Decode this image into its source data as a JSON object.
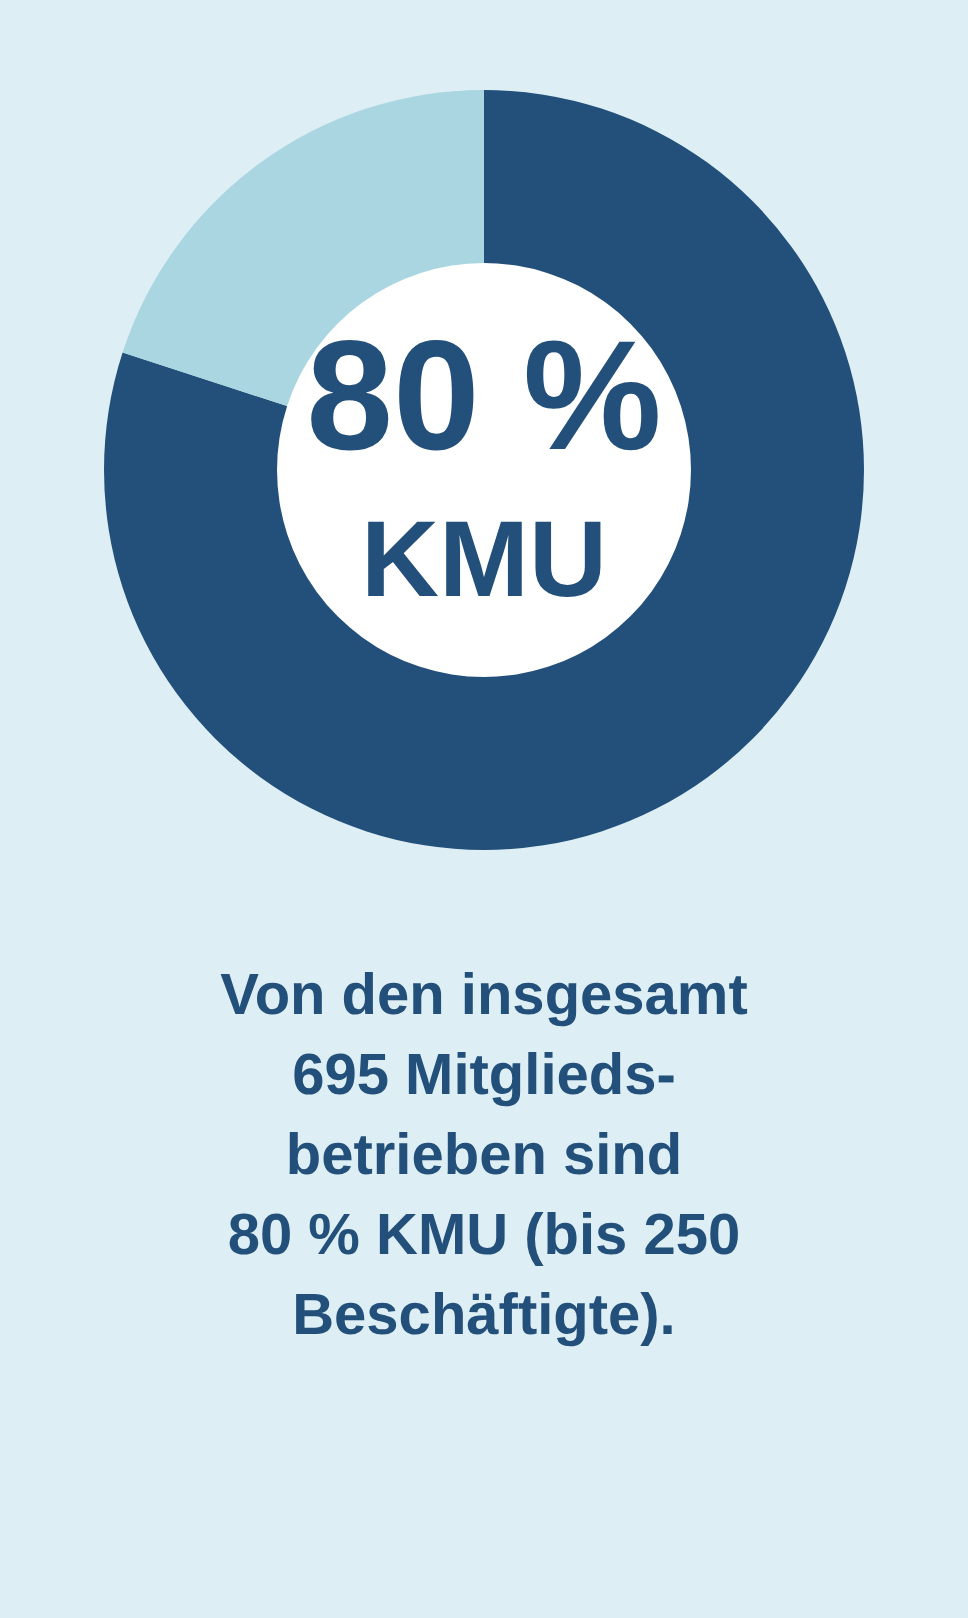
{
  "chart_data": {
    "type": "donut",
    "categories": [
      "KMU",
      null
    ],
    "values": [
      80,
      20
    ],
    "colors": [
      "#23507a",
      "#a9d6e0"
    ],
    "value_labels": [
      "80 %",
      null
    ],
    "annotations": [
      "Von den insgesamt\n695 Mitglieds-\nbetrieben sind\n80 % KMU (bis 250\nBeschäftigte)."
    ]
  }
}
